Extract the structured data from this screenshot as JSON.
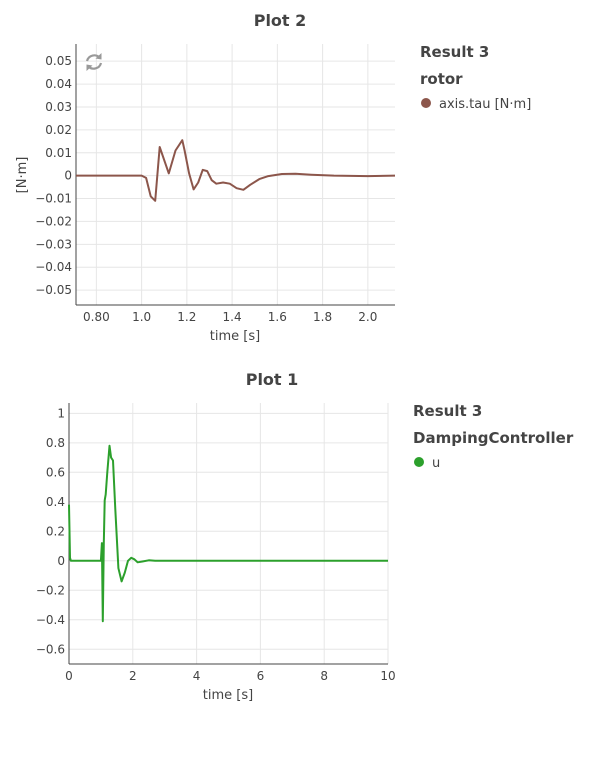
{
  "plots": [
    {
      "title": "Plot 2",
      "legend": {
        "result": "Result 3",
        "group": "rotor",
        "items": [
          {
            "label": "axis.tau [N·m]",
            "color": "#8c564b"
          }
        ]
      },
      "toolbar": {
        "reset_icon": "autoscale-reset-icon"
      },
      "chart_data": {
        "type": "line",
        "title": "Plot 2",
        "xlabel": "time [s]",
        "ylabel": "[N·m]",
        "xlim": [
          0.71,
          2.12
        ],
        "ylim": [
          -0.0565,
          0.0575
        ],
        "x_ticks": [
          0.8,
          1.0,
          1.2,
          1.4,
          1.6,
          1.8,
          2.0
        ],
        "x_tick_labels": [
          "0.80",
          "1.0",
          "1.2",
          "1.4",
          "1.6",
          "1.8",
          "2.0"
        ],
        "y_ticks": [
          0.05,
          0.04,
          0.03,
          0.02,
          0.01,
          0,
          -0.01,
          -0.02,
          -0.03,
          -0.04,
          -0.05
        ],
        "y_tick_labels": [
          "0.05",
          "0.04",
          "0.03",
          "0.02",
          "0.01",
          "0",
          "−0.01",
          "−0.02",
          "−0.03",
          "−0.04",
          "−0.05"
        ],
        "grid": true,
        "series": [
          {
            "name": "axis.tau [N·m]",
            "color": "#8c564b",
            "x": [
              0.71,
              1.0,
              1.02,
              1.04,
              1.06,
              1.08,
              1.12,
              1.15,
              1.18,
              1.19,
              1.21,
              1.23,
              1.25,
              1.27,
              1.29,
              1.31,
              1.33,
              1.36,
              1.39,
              1.42,
              1.45,
              1.48,
              1.52,
              1.56,
              1.62,
              1.68,
              1.75,
              1.85,
              2.0,
              2.12
            ],
            "y": [
              0,
              0,
              -0.001,
              -0.009,
              -0.011,
              0.0125,
              0.001,
              0.011,
              0.0155,
              0.011,
              0.001,
              -0.006,
              -0.003,
              0.0025,
              0.002,
              -0.002,
              -0.0035,
              -0.003,
              -0.0035,
              -0.0055,
              -0.0062,
              -0.004,
              -0.0015,
              -0.0002,
              0.0007,
              0.0008,
              0.0004,
              0.0,
              -0.0002,
              0.0
            ]
          }
        ]
      }
    },
    {
      "title": "Plot 1",
      "legend": {
        "result": "Result 3",
        "group": "DampingController",
        "items": [
          {
            "label": "u",
            "color": "#2ca02c"
          }
        ]
      },
      "chart_data": {
        "type": "line",
        "title": "Plot 1",
        "xlabel": "time [s]",
        "ylabel": "",
        "xlim": [
          0,
          10
        ],
        "ylim": [
          -0.7,
          1.07
        ],
        "x_ticks": [
          0,
          2,
          4,
          6,
          8,
          10
        ],
        "x_tick_labels": [
          "0",
          "2",
          "4",
          "6",
          "8",
          "10"
        ],
        "y_ticks": [
          1,
          0.8,
          0.6,
          0.4,
          0.2,
          0,
          -0.2,
          -0.4,
          -0.6
        ],
        "y_tick_labels": [
          "1",
          "0.8",
          "0.6",
          "0.4",
          "0.2",
          "0",
          "−0.2",
          "−0.4",
          "−0.6"
        ],
        "grid": true,
        "series": [
          {
            "name": "u",
            "color": "#2ca02c",
            "x": [
              0,
              0.03,
              0.06,
              1.0,
              1.03,
              1.06,
              1.09,
              1.12,
              1.15,
              1.2,
              1.27,
              1.32,
              1.38,
              1.45,
              1.55,
              1.65,
              1.75,
              1.85,
              1.95,
              2.05,
              2.15,
              2.3,
              2.5,
              2.7,
              3.0,
              10
            ],
            "y": [
              0.38,
              0.02,
              0,
              0,
              0.12,
              -0.41,
              0.12,
              0.41,
              0.45,
              0.6,
              0.78,
              0.7,
              0.68,
              0.35,
              -0.05,
              -0.14,
              -0.08,
              0.0,
              0.02,
              0.01,
              -0.01,
              -0.005,
              0.003,
              0.0,
              0.0,
              0.0
            ]
          }
        ]
      }
    }
  ]
}
